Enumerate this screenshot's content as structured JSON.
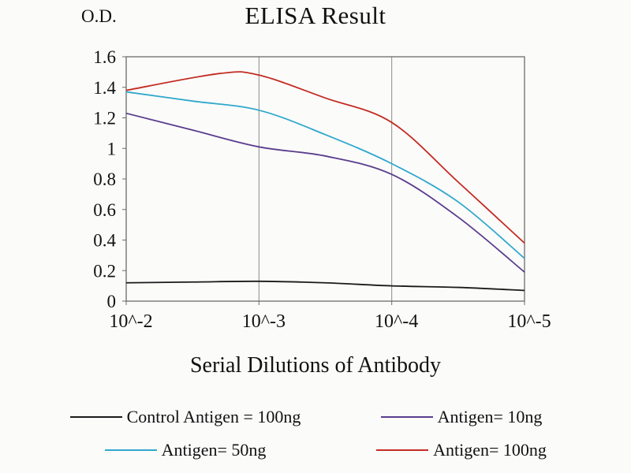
{
  "chart_data": {
    "type": "line",
    "title": "ELISA Result",
    "ylabel": "O.D.",
    "xlabel": "Serial Dilutions of Antibody",
    "x_tick_labels": [
      "10^-2",
      "10^-3",
      "10^-4",
      "10^-5"
    ],
    "ylim": [
      0,
      1.6
    ],
    "y_tick_step": 0.2,
    "grid": "vertical-only",
    "legend_position": "bottom",
    "axis_color": "#6b6b6b",
    "grid_color": "#8a8a8a",
    "series": [
      {
        "name": "Control Antigen = 100ng",
        "color": "#1a1a1a",
        "x": [
          0,
          0.5,
          1,
          1.5,
          2,
          2.5,
          3
        ],
        "values": [
          0.12,
          0.125,
          0.13,
          0.12,
          0.1,
          0.09,
          0.07
        ]
      },
      {
        "name": "Antigen= 10ng",
        "color": "#5a3d8c",
        "x": [
          0,
          0.5,
          1,
          1.5,
          2,
          2.5,
          3
        ],
        "values": [
          1.23,
          1.12,
          1.01,
          0.95,
          0.83,
          0.55,
          0.19
        ]
      },
      {
        "name": "Antigen= 50ng",
        "color": "#2fa8cc",
        "x": [
          0,
          0.5,
          1,
          1.5,
          2,
          2.5,
          3
        ],
        "values": [
          1.37,
          1.31,
          1.25,
          1.09,
          0.9,
          0.65,
          0.28
        ]
      },
      {
        "name": "Antigen= 100ng",
        "color": "#c42c22",
        "x": [
          0,
          0.7,
          1,
          1.5,
          2,
          2.5,
          3
        ],
        "values": [
          1.38,
          1.49,
          1.48,
          1.33,
          1.17,
          0.78,
          0.38
        ]
      }
    ]
  }
}
